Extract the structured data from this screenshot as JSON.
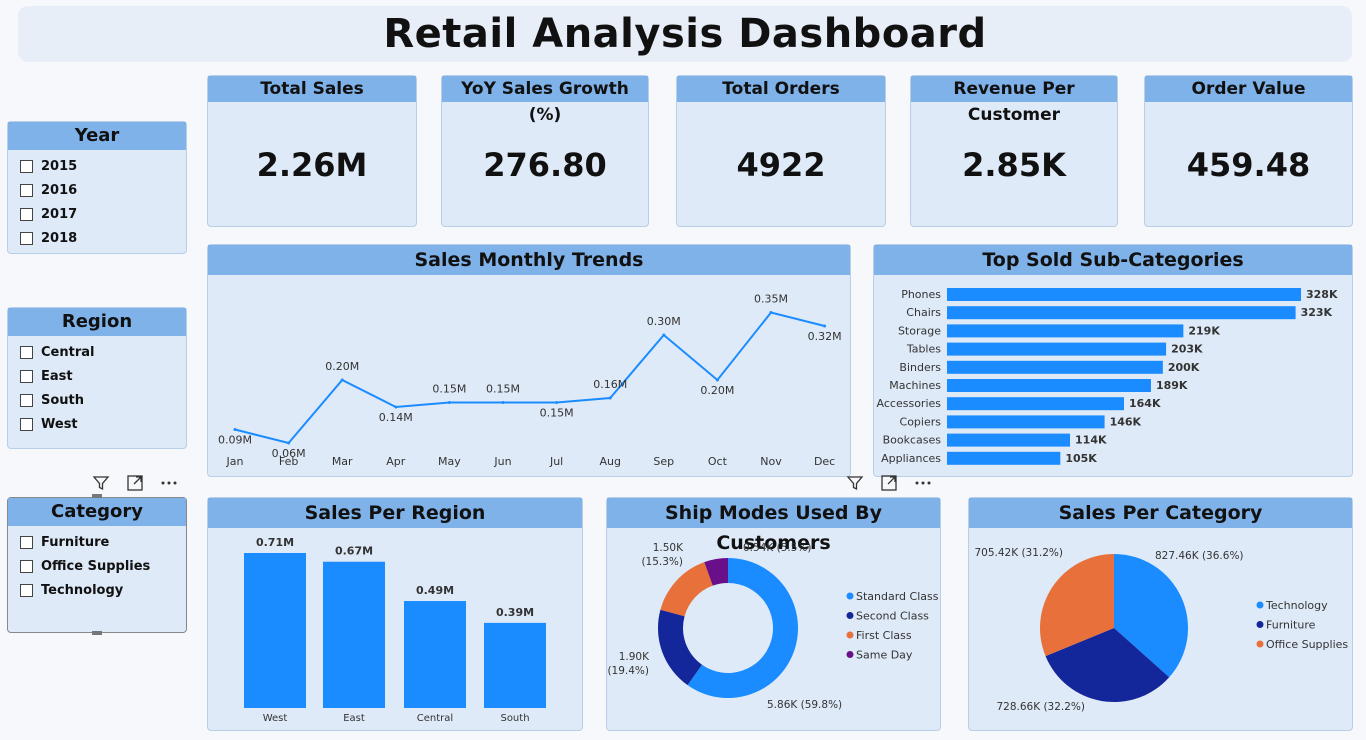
{
  "title": "Retail Analysis Dashboard",
  "kpis": [
    {
      "label": "Total Sales",
      "value": "2.26M"
    },
    {
      "label": "YoY Sales Growth (%)",
      "value": "276.80"
    },
    {
      "label": "Total Orders",
      "value": "4922"
    },
    {
      "label": "Revenue Per Customer",
      "value": "2.85K"
    },
    {
      "label": "Order Value",
      "value": "459.48"
    }
  ],
  "slicers": {
    "year": {
      "title": "Year",
      "items": [
        "2015",
        "2016",
        "2017",
        "2018"
      ]
    },
    "region": {
      "title": "Region",
      "items": [
        "Central",
        "East",
        "South",
        "West"
      ]
    },
    "category": {
      "title": "Category",
      "items": [
        "Furniture",
        "Office Supplies",
        "Technology"
      ]
    }
  },
  "panels": {
    "trend": "Sales Monthly Trends",
    "subcat": "Top Sold Sub-Categories",
    "region": "Sales Per Region",
    "shipmode": "Ship Modes Used By Customers",
    "category": "Sales Per Category"
  },
  "icons": [
    "filter-icon",
    "focus-mode-icon",
    "more-options-icon"
  ],
  "colors": {
    "bar": "#1a8cff",
    "head": "#7fb2e8",
    "panel": "#dfeaf8"
  },
  "chart_data": [
    {
      "id": "trend",
      "type": "line",
      "title": "Sales Monthly Trends",
      "categories": [
        "Jan",
        "Feb",
        "Mar",
        "Apr",
        "May",
        "Jun",
        "Jul",
        "Aug",
        "Sep",
        "Oct",
        "Nov",
        "Dec"
      ],
      "values": [
        0.09,
        0.06,
        0.2,
        0.14,
        0.15,
        0.15,
        0.15,
        0.16,
        0.3,
        0.2,
        0.35,
        0.32
      ],
      "labels": [
        "0.09M",
        "0.06M",
        "0.20M",
        "0.14M",
        "0.15M",
        "0.15M",
        "0.15M",
        "0.16M",
        "0.30M",
        "0.20M",
        "0.35M",
        "0.32M"
      ],
      "color": "#1a8cff"
    },
    {
      "id": "subcat",
      "type": "bar",
      "orientation": "horizontal",
      "title": "Top Sold Sub-Categories",
      "categories": [
        "Phones",
        "Chairs",
        "Storage",
        "Tables",
        "Binders",
        "Machines",
        "Accessories",
        "Copiers",
        "Bookcases",
        "Appliances"
      ],
      "values": [
        328,
        323,
        219,
        203,
        200,
        189,
        164,
        146,
        114,
        105
      ],
      "labels": [
        "328K",
        "323K",
        "219K",
        "203K",
        "200K",
        "189K",
        "164K",
        "146K",
        "114K",
        "105K"
      ],
      "color": "#1a8cff"
    },
    {
      "id": "region",
      "type": "bar",
      "title": "Sales Per Region",
      "categories": [
        "West",
        "East",
        "Central",
        "South"
      ],
      "values": [
        0.71,
        0.67,
        0.49,
        0.39
      ],
      "labels": [
        "0.71M",
        "0.67M",
        "0.49M",
        "0.39M"
      ],
      "color": "#1a8cff"
    },
    {
      "id": "shipmode",
      "type": "pie",
      "style": "donut",
      "title": "Ship Modes Used By Customers",
      "categories": [
        "Standard Class",
        "Second Class",
        "First Class",
        "Same Day"
      ],
      "values": [
        59.8,
        19.4,
        15.3,
        5.5
      ],
      "labels": [
        "5.86K (59.8%)",
        "1.90K (19.4%)",
        "1.50K (15.3%)",
        "0.54K (5.5%)"
      ],
      "colors": [
        "#1a8cff",
        "#13279a",
        "#e8703a",
        "#6a0f8a"
      ],
      "legend": "right"
    },
    {
      "id": "category",
      "type": "pie",
      "title": "Sales Per Category",
      "categories": [
        "Technology",
        "Furniture",
        "Office Supplies"
      ],
      "values": [
        36.6,
        32.2,
        31.2
      ],
      "labels": [
        "827.46K (36.6%)",
        "728.66K (32.2%)",
        "705.42K (31.2%)"
      ],
      "colors": [
        "#1a8cff",
        "#13279a",
        "#e8703a"
      ],
      "legend": "right"
    }
  ]
}
